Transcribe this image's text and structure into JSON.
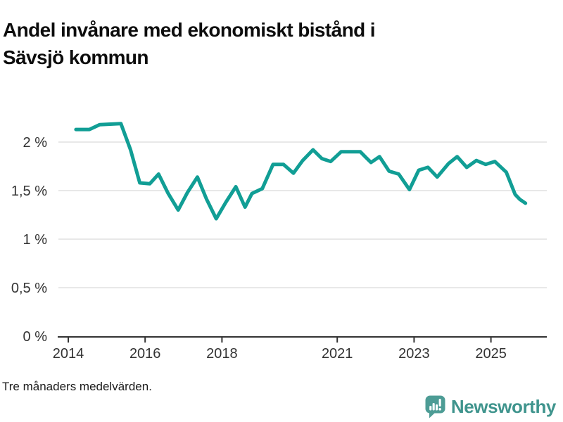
{
  "title": {
    "full": "Andel invånare med ekonomiskt bistånd i Sävsjö kommun",
    "line1": "Andel invånare med ekonomiskt bistånd i",
    "line2": "Sävsjö kommun"
  },
  "footnote": "Tre månaders medelvärden.",
  "branding": {
    "logo_text": "Newsworthy",
    "icon_name": "newsworthy-speech-bubble-barchart-icon",
    "icon_color": "#4d9c95",
    "text_color": "#3f948d"
  },
  "chart_data": {
    "type": "line",
    "title": "Andel invånare med ekonomiskt bistånd i Sävsjö kommun",
    "xlabel": "",
    "ylabel": "",
    "unit": "%",
    "grid": true,
    "legend": false,
    "xlim": [
      2013.75,
      2026.45
    ],
    "ylim": [
      0,
      2.3
    ],
    "x_ticks": [
      {
        "value": 2014,
        "label": "2014"
      },
      {
        "value": 2016,
        "label": "2016"
      },
      {
        "value": 2018,
        "label": "2018"
      },
      {
        "value": 2021,
        "label": "2021"
      },
      {
        "value": 2023,
        "label": "2023"
      },
      {
        "value": 2025,
        "label": "2025"
      }
    ],
    "y_ticks": [
      {
        "value": 0,
        "label": "0 %"
      },
      {
        "value": 0.5,
        "label": "0,5 %"
      },
      {
        "value": 1,
        "label": "1 %"
      },
      {
        "value": 1.5,
        "label": "1,5 %"
      },
      {
        "value": 2,
        "label": "2 %"
      }
    ],
    "colors": {
      "line": "#119e95",
      "grid": "#e0e0e0",
      "axis": "#333333",
      "tick_label": "#333333"
    },
    "series": [
      {
        "name": "Andel invånare med ekonomiskt bistånd (%)",
        "points": [
          [
            2014.2,
            2.13
          ],
          [
            2014.55,
            2.13
          ],
          [
            2014.82,
            2.18
          ],
          [
            2015.37,
            2.19
          ],
          [
            2015.62,
            1.92
          ],
          [
            2015.86,
            1.58
          ],
          [
            2016.12,
            1.57
          ],
          [
            2016.35,
            1.67
          ],
          [
            2016.6,
            1.47
          ],
          [
            2016.86,
            1.3
          ],
          [
            2017.1,
            1.48
          ],
          [
            2017.36,
            1.64
          ],
          [
            2017.6,
            1.41
          ],
          [
            2017.85,
            1.21
          ],
          [
            2018.1,
            1.38
          ],
          [
            2018.36,
            1.54
          ],
          [
            2018.6,
            1.33
          ],
          [
            2018.78,
            1.47
          ],
          [
            2019.05,
            1.52
          ],
          [
            2019.33,
            1.77
          ],
          [
            2019.6,
            1.77
          ],
          [
            2019.86,
            1.68
          ],
          [
            2020.1,
            1.81
          ],
          [
            2020.37,
            1.92
          ],
          [
            2020.6,
            1.83
          ],
          [
            2020.83,
            1.8
          ],
          [
            2021.1,
            1.9
          ],
          [
            2021.6,
            1.9
          ],
          [
            2021.75,
            1.84
          ],
          [
            2021.88,
            1.79
          ],
          [
            2022.1,
            1.85
          ],
          [
            2022.35,
            1.7
          ],
          [
            2022.6,
            1.67
          ],
          [
            2022.88,
            1.51
          ],
          [
            2023.12,
            1.71
          ],
          [
            2023.36,
            1.74
          ],
          [
            2023.6,
            1.64
          ],
          [
            2023.9,
            1.78
          ],
          [
            2024.12,
            1.85
          ],
          [
            2024.37,
            1.74
          ],
          [
            2024.62,
            1.81
          ],
          [
            2024.86,
            1.77
          ],
          [
            2025.1,
            1.8
          ],
          [
            2025.4,
            1.69
          ],
          [
            2025.63,
            1.46
          ],
          [
            2025.75,
            1.41
          ],
          [
            2025.9,
            1.37
          ]
        ]
      }
    ]
  }
}
